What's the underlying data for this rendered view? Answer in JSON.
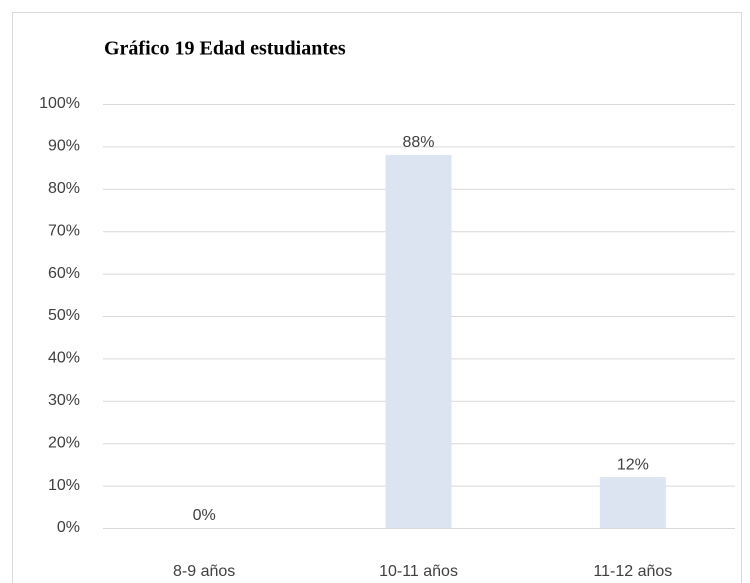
{
  "chart_data": {
    "type": "bar",
    "title": "Gráfico 19 Edad estudiantes",
    "categories": [
      "8-9 años",
      "10-11 años",
      "11-12 años"
    ],
    "values": [
      0,
      88,
      12
    ],
    "value_labels": [
      "0%",
      "88%",
      "12%"
    ],
    "color": "#dce3f1",
    "ylim": [
      0,
      100
    ],
    "yticks": [
      {
        "value": 0,
        "label": "0%"
      },
      {
        "value": 10,
        "label": "10%"
      },
      {
        "value": 20,
        "label": "20%"
      },
      {
        "value": 30,
        "label": "30%"
      },
      {
        "value": 40,
        "label": "40%"
      },
      {
        "value": 50,
        "label": "50%"
      },
      {
        "value": 60,
        "label": "60%"
      },
      {
        "value": 70,
        "label": "70%"
      },
      {
        "value": 80,
        "label": "80%"
      },
      {
        "value": 90,
        "label": "90%"
      },
      {
        "value": 100,
        "label": "100%"
      }
    ],
    "grid": true
  }
}
